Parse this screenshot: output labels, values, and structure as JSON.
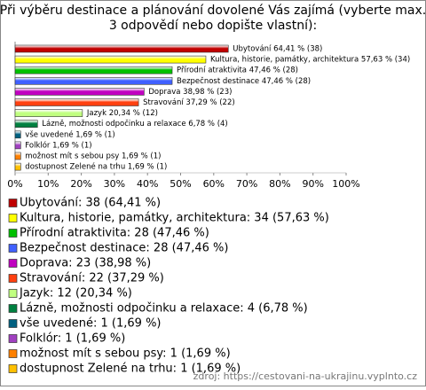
{
  "chart_data": {
    "type": "hbar",
    "title_lines": [
      "Při výběru destinace a plánování dovolené Vás zajímá (vyberte max.",
      "3 odpovědí nebo dopište vlastní):"
    ],
    "categories": [
      "Ubytování",
      "Kultura, historie, památky, architektura",
      "Přírodní atraktivita",
      "Bezpečnost destinace",
      "Doprava",
      "Stravování",
      "Jazyk",
      "Lázně, možnosti odpočinku a relaxace",
      "vše uvedené",
      "Folklór",
      "možnost mít s sebou psy",
      "dostupnost Zelené na trhu"
    ],
    "values": [
      64.41,
      57.63,
      47.46,
      47.46,
      38.98,
      37.29,
      20.34,
      6.78,
      1.69,
      1.69,
      1.69,
      1.69
    ],
    "value_labels": [
      "Ubytování 64,41 % (38)",
      "Kultura, historie, památky, architektura 57,63 % (34)",
      "Přírodní atraktivita 47,46 % (28)",
      "Bezpečnost destinace 47,46 % (28)",
      "Doprava 38,98 % (23)",
      "Stravování 37,29 % (22)",
      "Jazyk 20,34 % (12)",
      "Lázně, možnosti odpočinku a relaxace 6,78 % (4)",
      "vše uvedené 1,69 % (1)",
      "Folklór 1,69 % (1)",
      "možnost mít s sebou psy 1,69 % (1)",
      "dostupnost Zelené na trhu 1,69 % (1)"
    ],
    "legend_labels": [
      "Ubytování: 38 (64,41 %)",
      "Kultura, historie, památky, architektura: 34 (57,63 %)",
      "Přírodní atraktivita: 28 (47,46 %)",
      "Bezpečnost destinace: 28 (47,46 %)",
      "Doprava: 23 (38,98 %)",
      "Stravování: 22 (37,29 %)",
      "Jazyk: 12 (20,34 %)",
      "Lázně, možnosti odpočinku a relaxace: 4 (6,78 %)",
      "vše uvedené: 1 (1,69 %)",
      "Folklór: 1 (1,69 %)",
      "možnost mít s sebou psy: 1 (1,69 %)",
      "dostupnost Zelené na trhu: 1 (1,69 %)"
    ],
    "colors": [
      "#c00000",
      "#ffff00",
      "#00c000",
      "#4060ff",
      "#c000c0",
      "#ff4010",
      "#c0ff80",
      "#008040",
      "#006080",
      "#a040c0",
      "#ff8000",
      "#ffc000"
    ],
    "xlim": [
      0,
      100
    ],
    "xticks": [
      {
        "value": 0,
        "label": "0%"
      },
      {
        "value": 10,
        "label": "10%"
      },
      {
        "value": 20,
        "label": "20%"
      },
      {
        "value": 30,
        "label": "30%"
      },
      {
        "value": 40,
        "label": "40%"
      },
      {
        "value": 50,
        "label": "50%"
      },
      {
        "value": 60,
        "label": "60%"
      },
      {
        "value": 70,
        "label": "70%"
      },
      {
        "value": 80,
        "label": "80%"
      },
      {
        "value": 90,
        "label": "90%"
      },
      {
        "value": 100,
        "label": "100%"
      }
    ],
    "grid": false,
    "source": "zdroj: https://cestovani-na-ukrajinu.vyplnto.cz"
  }
}
